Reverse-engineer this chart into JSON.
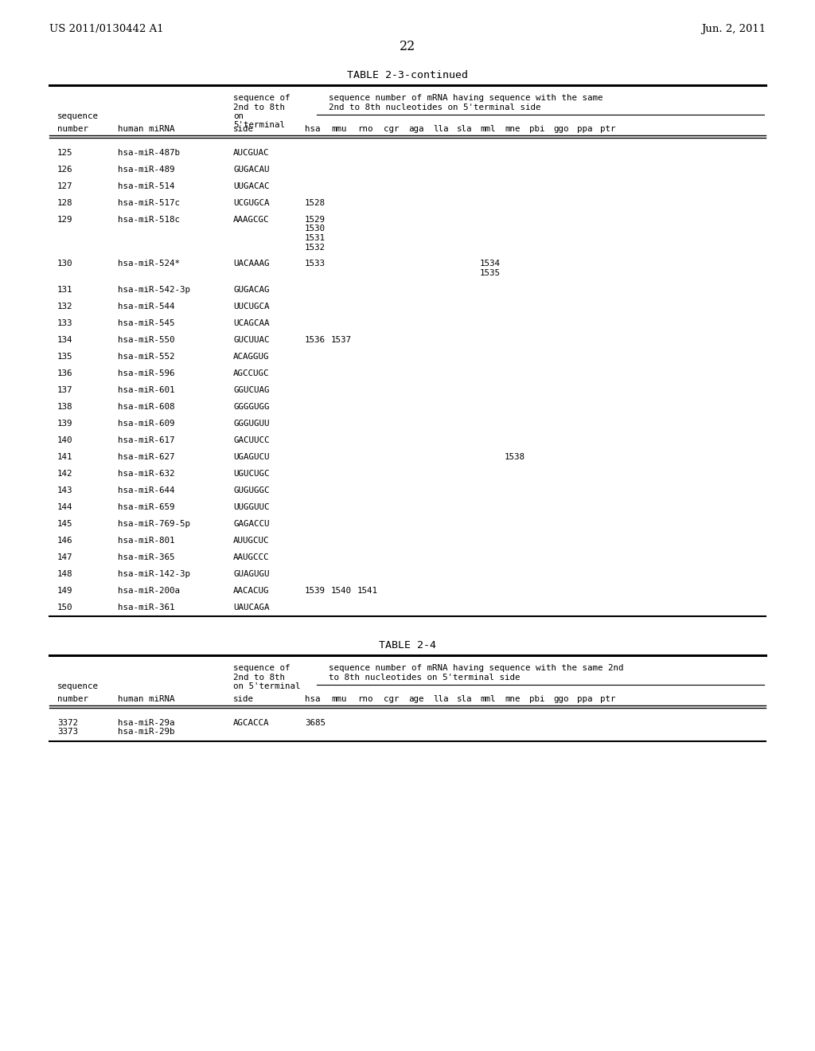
{
  "page_left": "US 2011/0130442 A1",
  "page_right": "Jun. 2, 2011",
  "page_number": "22",
  "table1_title": "TABLE 2-3-continued",
  "table1_subheader_cols": [
    "hsa",
    "mmu",
    "rno",
    "cgr",
    "aga",
    "lla",
    "sla",
    "mml",
    "mne",
    "pbi",
    "ggo",
    "ppa",
    "ptr"
  ],
  "table1_rows": [
    {
      "num": "125",
      "mirna": "hsa-miR-487b",
      "side": "AUCGUAC",
      "vals": {
        "hsa": "",
        "mmu": "",
        "rno": "",
        "cgr": "",
        "aga": "",
        "lla": "",
        "sla": "",
        "mml": "",
        "mne": "",
        "pbi": "",
        "ggo": "",
        "ppa": "",
        "ptr": ""
      }
    },
    {
      "num": "126",
      "mirna": "hsa-miR-489",
      "side": "GUGACAU",
      "vals": {
        "hsa": "",
        "mmu": "",
        "rno": "",
        "cgr": "",
        "aga": "",
        "lla": "",
        "sla": "",
        "mml": "",
        "mne": "",
        "pbi": "",
        "ggo": "",
        "ppa": "",
        "ptr": ""
      }
    },
    {
      "num": "127",
      "mirna": "hsa-miR-514",
      "side": "UUGACAC",
      "vals": {
        "hsa": "",
        "mmu": "",
        "rno": "",
        "cgr": "",
        "aga": "",
        "lla": "",
        "sla": "",
        "mml": "",
        "mne": "",
        "pbi": "",
        "ggo": "",
        "ppa": "",
        "ptr": ""
      }
    },
    {
      "num": "128",
      "mirna": "hsa-miR-517c",
      "side": "UCGUGCA",
      "vals": {
        "hsa": "1528",
        "mmu": "",
        "rno": "",
        "cgr": "",
        "aga": "",
        "lla": "",
        "sla": "",
        "mml": "",
        "mne": "",
        "pbi": "",
        "ggo": "",
        "ppa": "",
        "ptr": ""
      }
    },
    {
      "num": "129",
      "mirna": "hsa-miR-518c",
      "side": "AAAGCGC",
      "vals": {
        "hsa": "1529\n1530\n1531\n1532",
        "mmu": "",
        "rno": "",
        "cgr": "",
        "aga": "",
        "lla": "",
        "sla": "",
        "mml": "",
        "mne": "",
        "pbi": "",
        "ggo": "",
        "ppa": "",
        "ptr": ""
      }
    },
    {
      "num": "130",
      "mirna": "hsa-miR-524*",
      "side": "UACAAAG",
      "vals": {
        "hsa": "1533",
        "mmu": "",
        "rno": "",
        "cgr": "",
        "aga": "",
        "lla": "",
        "sla": "",
        "mml": "1534\n1535",
        "mne": "",
        "pbi": "",
        "ggo": "",
        "ppa": "",
        "ptr": ""
      }
    },
    {
      "num": "131",
      "mirna": "hsa-miR-542-3p",
      "side": "GUGACAG",
      "vals": {
        "hsa": "",
        "mmu": "",
        "rno": "",
        "cgr": "",
        "aga": "",
        "lla": "",
        "sla": "",
        "mml": "",
        "mne": "",
        "pbi": "",
        "ggo": "",
        "ppa": "",
        "ptr": ""
      }
    },
    {
      "num": "132",
      "mirna": "hsa-miR-544",
      "side": "UUCUGCA",
      "vals": {
        "hsa": "",
        "mmu": "",
        "rno": "",
        "cgr": "",
        "aga": "",
        "lla": "",
        "sla": "",
        "mml": "",
        "mne": "",
        "pbi": "",
        "ggo": "",
        "ppa": "",
        "ptr": ""
      }
    },
    {
      "num": "133",
      "mirna": "hsa-miR-545",
      "side": "UCAGCAA",
      "vals": {
        "hsa": "",
        "mmu": "",
        "rno": "",
        "cgr": "",
        "aga": "",
        "lla": "",
        "sla": "",
        "mml": "",
        "mne": "",
        "pbi": "",
        "ggo": "",
        "ppa": "",
        "ptr": ""
      }
    },
    {
      "num": "134",
      "mirna": "hsa-miR-550",
      "side": "GUCUUAC",
      "vals": {
        "hsa": "1536",
        "mmu": "1537",
        "rno": "",
        "cgr": "",
        "aga": "",
        "lla": "",
        "sla": "",
        "mml": "",
        "mne": "",
        "pbi": "",
        "ggo": "",
        "ppa": "",
        "ptr": ""
      }
    },
    {
      "num": "135",
      "mirna": "hsa-miR-552",
      "side": "ACAGGUG",
      "vals": {
        "hsa": "",
        "mmu": "",
        "rno": "",
        "cgr": "",
        "aga": "",
        "lla": "",
        "sla": "",
        "mml": "",
        "mne": "",
        "pbi": "",
        "ggo": "",
        "ppa": "",
        "ptr": ""
      }
    },
    {
      "num": "136",
      "mirna": "hsa-miR-596",
      "side": "AGCCUGC",
      "vals": {
        "hsa": "",
        "mmu": "",
        "rno": "",
        "cgr": "",
        "aga": "",
        "lla": "",
        "sla": "",
        "mml": "",
        "mne": "",
        "pbi": "",
        "ggo": "",
        "ppa": "",
        "ptr": ""
      }
    },
    {
      "num": "137",
      "mirna": "hsa-miR-601",
      "side": "GGUCUAG",
      "vals": {
        "hsa": "",
        "mmu": "",
        "rno": "",
        "cgr": "",
        "aga": "",
        "lla": "",
        "sla": "",
        "mml": "",
        "mne": "",
        "pbi": "",
        "ggo": "",
        "ppa": "",
        "ptr": ""
      }
    },
    {
      "num": "138",
      "mirna": "hsa-miR-608",
      "side": "GGGGUGG",
      "vals": {
        "hsa": "",
        "mmu": "",
        "rno": "",
        "cgr": "",
        "aga": "",
        "lla": "",
        "sla": "",
        "mml": "",
        "mne": "",
        "pbi": "",
        "ggo": "",
        "ppa": "",
        "ptr": ""
      }
    },
    {
      "num": "139",
      "mirna": "hsa-miR-609",
      "side": "GGGUGUU",
      "vals": {
        "hsa": "",
        "mmu": "",
        "rno": "",
        "cgr": "",
        "aga": "",
        "lla": "",
        "sla": "",
        "mml": "",
        "mne": "",
        "pbi": "",
        "ggo": "",
        "ppa": "",
        "ptr": ""
      }
    },
    {
      "num": "140",
      "mirna": "hsa-miR-617",
      "side": "GACUUCC",
      "vals": {
        "hsa": "",
        "mmu": "",
        "rno": "",
        "cgr": "",
        "aga": "",
        "lla": "",
        "sla": "",
        "mml": "",
        "mne": "",
        "pbi": "",
        "ggo": "",
        "ppa": "",
        "ptr": ""
      }
    },
    {
      "num": "141",
      "mirna": "hsa-miR-627",
      "side": "UGAGUCU",
      "vals": {
        "hsa": "",
        "mmu": "",
        "rno": "",
        "cgr": "",
        "aga": "",
        "lla": "",
        "sla": "",
        "mml": "",
        "mne": "1538",
        "pbi": "",
        "ggo": "",
        "ppa": "",
        "ptr": ""
      }
    },
    {
      "num": "142",
      "mirna": "hsa-miR-632",
      "side": "UGUCUGC",
      "vals": {
        "hsa": "",
        "mmu": "",
        "rno": "",
        "cgr": "",
        "aga": "",
        "lla": "",
        "sla": "",
        "mml": "",
        "mne": "",
        "pbi": "",
        "ggo": "",
        "ppa": "",
        "ptr": ""
      }
    },
    {
      "num": "143",
      "mirna": "hsa-miR-644",
      "side": "GUGUGGC",
      "vals": {
        "hsa": "",
        "mmu": "",
        "rno": "",
        "cgr": "",
        "aga": "",
        "lla": "",
        "sla": "",
        "mml": "",
        "mne": "",
        "pbi": "",
        "ggo": "",
        "ppa": "",
        "ptr": ""
      }
    },
    {
      "num": "144",
      "mirna": "hsa-miR-659",
      "side": "UUGGUUC",
      "vals": {
        "hsa": "",
        "mmu": "",
        "rno": "",
        "cgr": "",
        "aga": "",
        "lla": "",
        "sla": "",
        "mml": "",
        "mne": "",
        "pbi": "",
        "ggo": "",
        "ppa": "",
        "ptr": ""
      }
    },
    {
      "num": "145",
      "mirna": "hsa-miR-769-5p",
      "side": "GAGACCU",
      "vals": {
        "hsa": "",
        "mmu": "",
        "rno": "",
        "cgr": "",
        "aga": "",
        "lla": "",
        "sla": "",
        "mml": "",
        "mne": "",
        "pbi": "",
        "ggo": "",
        "ppa": "",
        "ptr": ""
      }
    },
    {
      "num": "146",
      "mirna": "hsa-miR-801",
      "side": "AUUGCUC",
      "vals": {
        "hsa": "",
        "mmu": "",
        "rno": "",
        "cgr": "",
        "aga": "",
        "lla": "",
        "sla": "",
        "mml": "",
        "mne": "",
        "pbi": "",
        "ggo": "",
        "ppa": "",
        "ptr": ""
      }
    },
    {
      "num": "147",
      "mirna": "hsa-miR-365",
      "side": "AAUGCCC",
      "vals": {
        "hsa": "",
        "mmu": "",
        "rno": "",
        "cgr": "",
        "aga": "",
        "lla": "",
        "sla": "",
        "mml": "",
        "mne": "",
        "pbi": "",
        "ggo": "",
        "ppa": "",
        "ptr": ""
      }
    },
    {
      "num": "148",
      "mirna": "hsa-miR-142-3p",
      "side": "GUAGUGU",
      "vals": {
        "hsa": "",
        "mmu": "",
        "rno": "",
        "cgr": "",
        "aga": "",
        "lla": "",
        "sla": "",
        "mml": "",
        "mne": "",
        "pbi": "",
        "ggo": "",
        "ppa": "",
        "ptr": ""
      }
    },
    {
      "num": "149",
      "mirna": "hsa-miR-200a",
      "side": "AACACUG",
      "vals": {
        "hsa": "1539",
        "mmu": "1540",
        "rno": "1541",
        "cgr": "",
        "aga": "",
        "lla": "",
        "sla": "",
        "mml": "",
        "mne": "",
        "pbi": "",
        "ggo": "",
        "ppa": "",
        "ptr": ""
      }
    },
    {
      "num": "150",
      "mirna": "hsa-miR-361",
      "side": "UAUCAGA",
      "vals": {
        "hsa": "",
        "mmu": "",
        "rno": "",
        "cgr": "",
        "aga": "",
        "lla": "",
        "sla": "",
        "mml": "",
        "mne": "",
        "pbi": "",
        "ggo": "",
        "ppa": "",
        "ptr": ""
      }
    }
  ],
  "table2_title": "TABLE 2-4",
  "table2_subheader_cols": [
    "hsa",
    "mmu",
    "rno",
    "cgr",
    "age",
    "lla",
    "sla",
    "mml",
    "mne",
    "pbi",
    "ggo",
    "ppa",
    "ptr"
  ],
  "table2_rows": [
    {
      "num": "3372\n3373",
      "mirna": "hsa-miR-29a\nhsa-miR-29b",
      "side": "AGCACCA",
      "vals": {
        "hsa": "3685",
        "mmu": "",
        "rno": "",
        "cgr": "",
        "age": "",
        "lla": "",
        "sla": "",
        "mml": "",
        "mne": "",
        "pbi": "",
        "ggo": "",
        "ppa": "",
        "ptr": ""
      }
    }
  ],
  "bg_color": "#ffffff",
  "text_color": "#000000",
  "mono_font": "DejaVu Sans Mono",
  "serif_font": "DejaVu Serif",
  "fs_body": 7.8,
  "fs_header": 9.5,
  "fs_pagenum": 11.5
}
